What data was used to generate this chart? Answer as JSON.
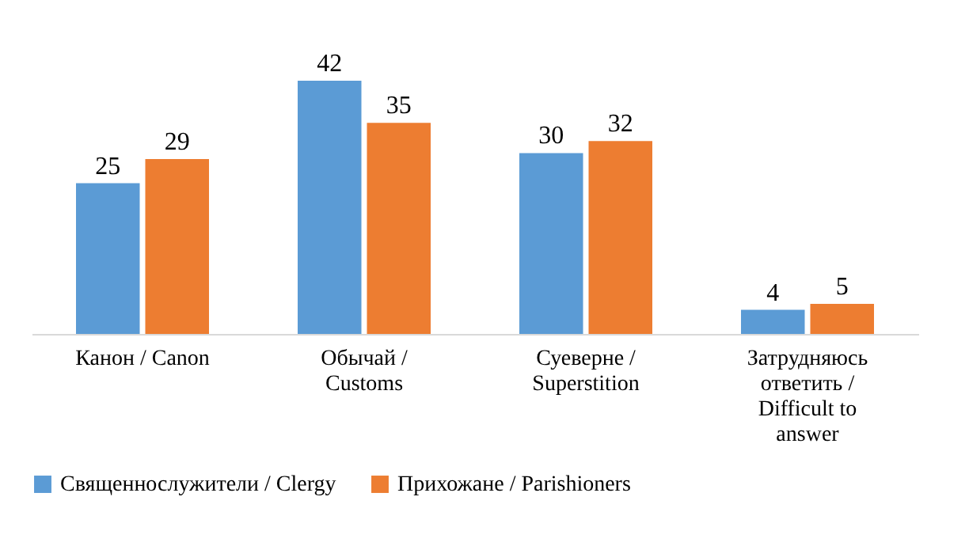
{
  "chart_data": {
    "type": "bar",
    "categories": [
      "Канон / Canon",
      "Обычай / Customs",
      "Суеверне / Superstition",
      "Затрудняюсь ответить / Difficult to answer"
    ],
    "series": [
      {
        "name": "Священнослужители / Clergy",
        "color": "#5b9bd5",
        "values": [
          25,
          42,
          30,
          4
        ]
      },
      {
        "name": "Прихожане / Parishioners",
        "color": "#ed7d31",
        "values": [
          29,
          35,
          32,
          5
        ]
      }
    ],
    "data_labels": true,
    "legend": "bottom",
    "grid": false
  }
}
